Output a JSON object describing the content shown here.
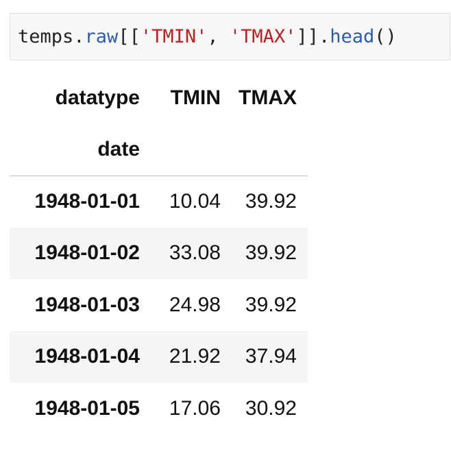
{
  "code": {
    "tokens": [
      {
        "text": "temps",
        "kind": "var"
      },
      {
        "text": ".",
        "kind": "punc"
      },
      {
        "text": "raw",
        "kind": "attr"
      },
      {
        "text": "[[",
        "kind": "punc"
      },
      {
        "text": "'TMIN'",
        "kind": "str"
      },
      {
        "text": ", ",
        "kind": "punc"
      },
      {
        "text": "'TMAX'",
        "kind": "str"
      },
      {
        "text": "]].",
        "kind": "punc"
      },
      {
        "text": "head",
        "kind": "attr"
      },
      {
        "text": "()",
        "kind": "punc"
      }
    ]
  },
  "table": {
    "columns_name": "datatype",
    "columns": [
      "TMIN",
      "TMAX"
    ],
    "index_name": "date",
    "rows": [
      {
        "index": "1948-01-01",
        "values": [
          "10.04",
          "39.92"
        ]
      },
      {
        "index": "1948-01-02",
        "values": [
          "33.08",
          "39.92"
        ]
      },
      {
        "index": "1948-01-03",
        "values": [
          "24.98",
          "39.92"
        ]
      },
      {
        "index": "1948-01-04",
        "values": [
          "21.92",
          "37.94"
        ]
      },
      {
        "index": "1948-01-05",
        "values": [
          "17.06",
          "30.92"
        ]
      }
    ]
  }
}
